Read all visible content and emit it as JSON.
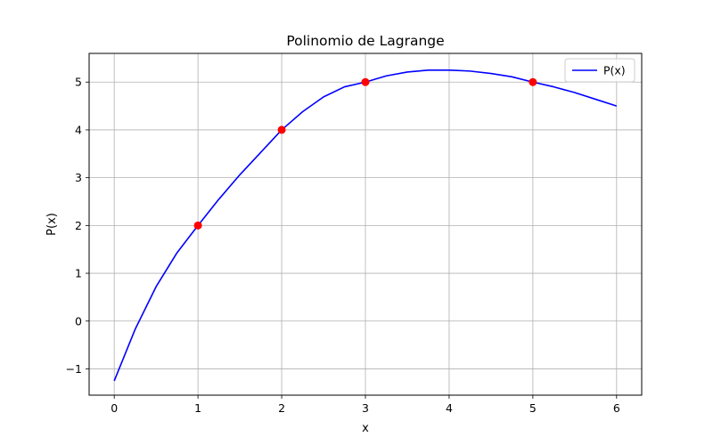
{
  "chart_data": {
    "type": "line",
    "title": "Polinomio de Lagrange",
    "xlabel": "x",
    "ylabel": "P(x)",
    "xlim": [
      -0.3,
      6.3
    ],
    "ylim": [
      -1.55,
      5.6
    ],
    "xticks": [
      0,
      1,
      2,
      3,
      4,
      5,
      6
    ],
    "yticks": [
      -1,
      0,
      1,
      2,
      3,
      4,
      5
    ],
    "xtick_labels": [
      "0",
      "1",
      "2",
      "3",
      "4",
      "5",
      "6"
    ],
    "ytick_labels": [
      "−1",
      "0",
      "1",
      "2",
      "3",
      "4",
      "5"
    ],
    "grid": true,
    "legend": {
      "placement": "top-right",
      "entries": [
        "P(x)"
      ]
    },
    "series": [
      {
        "name": "P(x)",
        "color": "#0000ff",
        "x": [
          0,
          0.25,
          0.5,
          0.75,
          1,
          1.25,
          1.5,
          1.75,
          2,
          2.25,
          2.5,
          2.75,
          3,
          3.25,
          3.5,
          3.75,
          4,
          4.25,
          4.5,
          4.75,
          5,
          5.25,
          5.5,
          5.75,
          6
        ],
        "y": [
          -1.25,
          -0.17,
          0.72,
          1.43,
          2.0,
          2.55,
          3.06,
          3.53,
          4.0,
          4.38,
          4.69,
          4.9,
          5.0,
          5.13,
          5.21,
          5.25,
          5.25,
          5.23,
          5.18,
          5.11,
          5.0,
          4.9,
          4.78,
          4.64,
          4.5
        ]
      }
    ],
    "points": {
      "color": "#ff0000",
      "x": [
        1,
        2,
        3,
        5
      ],
      "y": [
        2,
        4,
        5,
        5
      ]
    }
  }
}
